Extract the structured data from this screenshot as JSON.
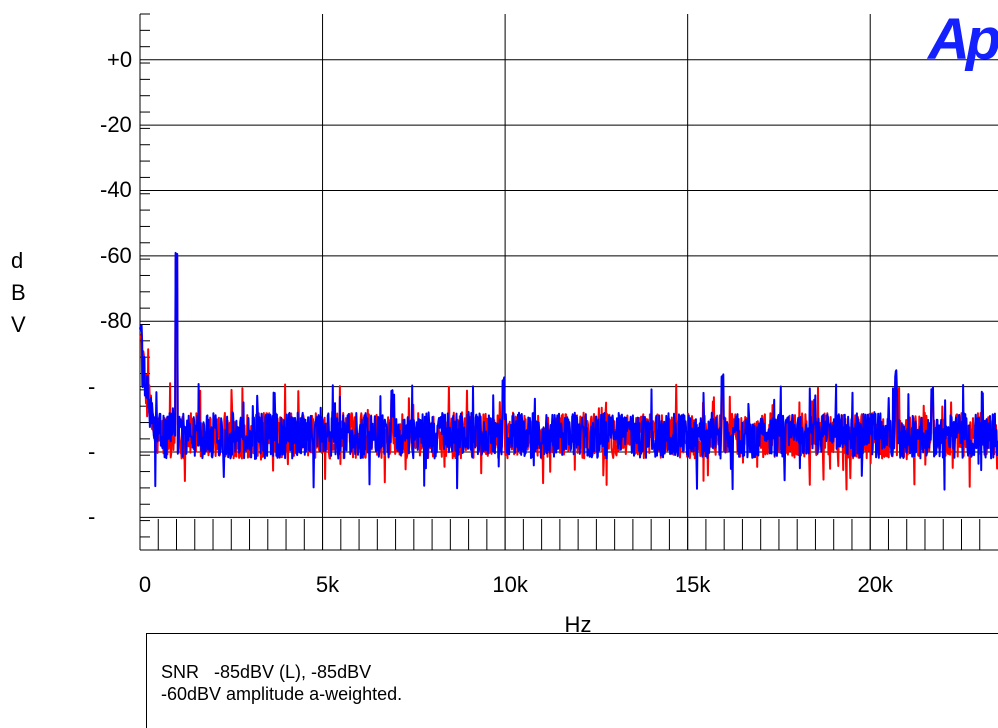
{
  "chart_data": {
    "type": "line",
    "xlabel": "Hz",
    "ylabel": "dBV",
    "ylabel_letters": [
      "d",
      "B",
      "V"
    ],
    "xlim": [
      0,
      23500
    ],
    "ylim": [
      -150,
      14
    ],
    "x_ticks": [
      {
        "value": 0,
        "label": "0"
      },
      {
        "value": 5000,
        "label": "5k"
      },
      {
        "value": 10000,
        "label": "10k"
      },
      {
        "value": 15000,
        "label": "15k"
      },
      {
        "value": 20000,
        "label": "20k"
      }
    ],
    "y_ticks": [
      {
        "value": 0,
        "label": "+0"
      },
      {
        "value": -20,
        "label": "-20"
      },
      {
        "value": -40,
        "label": "-40"
      },
      {
        "value": -60,
        "label": "-60"
      },
      {
        "value": -80,
        "label": "-80"
      },
      {
        "value": -100,
        "label": "-"
      },
      {
        "value": -120,
        "label": "-"
      },
      {
        "value": -140,
        "label": "-"
      }
    ],
    "grid": true,
    "noise_floor_db": -115,
    "series": [
      {
        "color": "#ff0000",
        "peaks": [
          [
            0,
            -85
          ],
          [
            1000,
            -61
          ],
          [
            6900,
            -103
          ],
          [
            9950,
            -101
          ],
          [
            15950,
            -100
          ],
          [
            20700,
            -99
          ],
          [
            21700,
            -104
          ]
        ]
      },
      {
        "color": "#0000ff",
        "peaks": [
          [
            0,
            -82
          ],
          [
            1000,
            -59
          ],
          [
            6900,
            -101
          ],
          [
            9950,
            -98
          ],
          [
            15950,
            -97
          ],
          [
            20700,
            -96
          ],
          [
            21700,
            -101
          ]
        ]
      }
    ]
  },
  "logo_text": "Ap",
  "notes": [
    "SNR   -85dBV (L), -85dBV",
    "-60dBV amplitude a-weighted."
  ]
}
